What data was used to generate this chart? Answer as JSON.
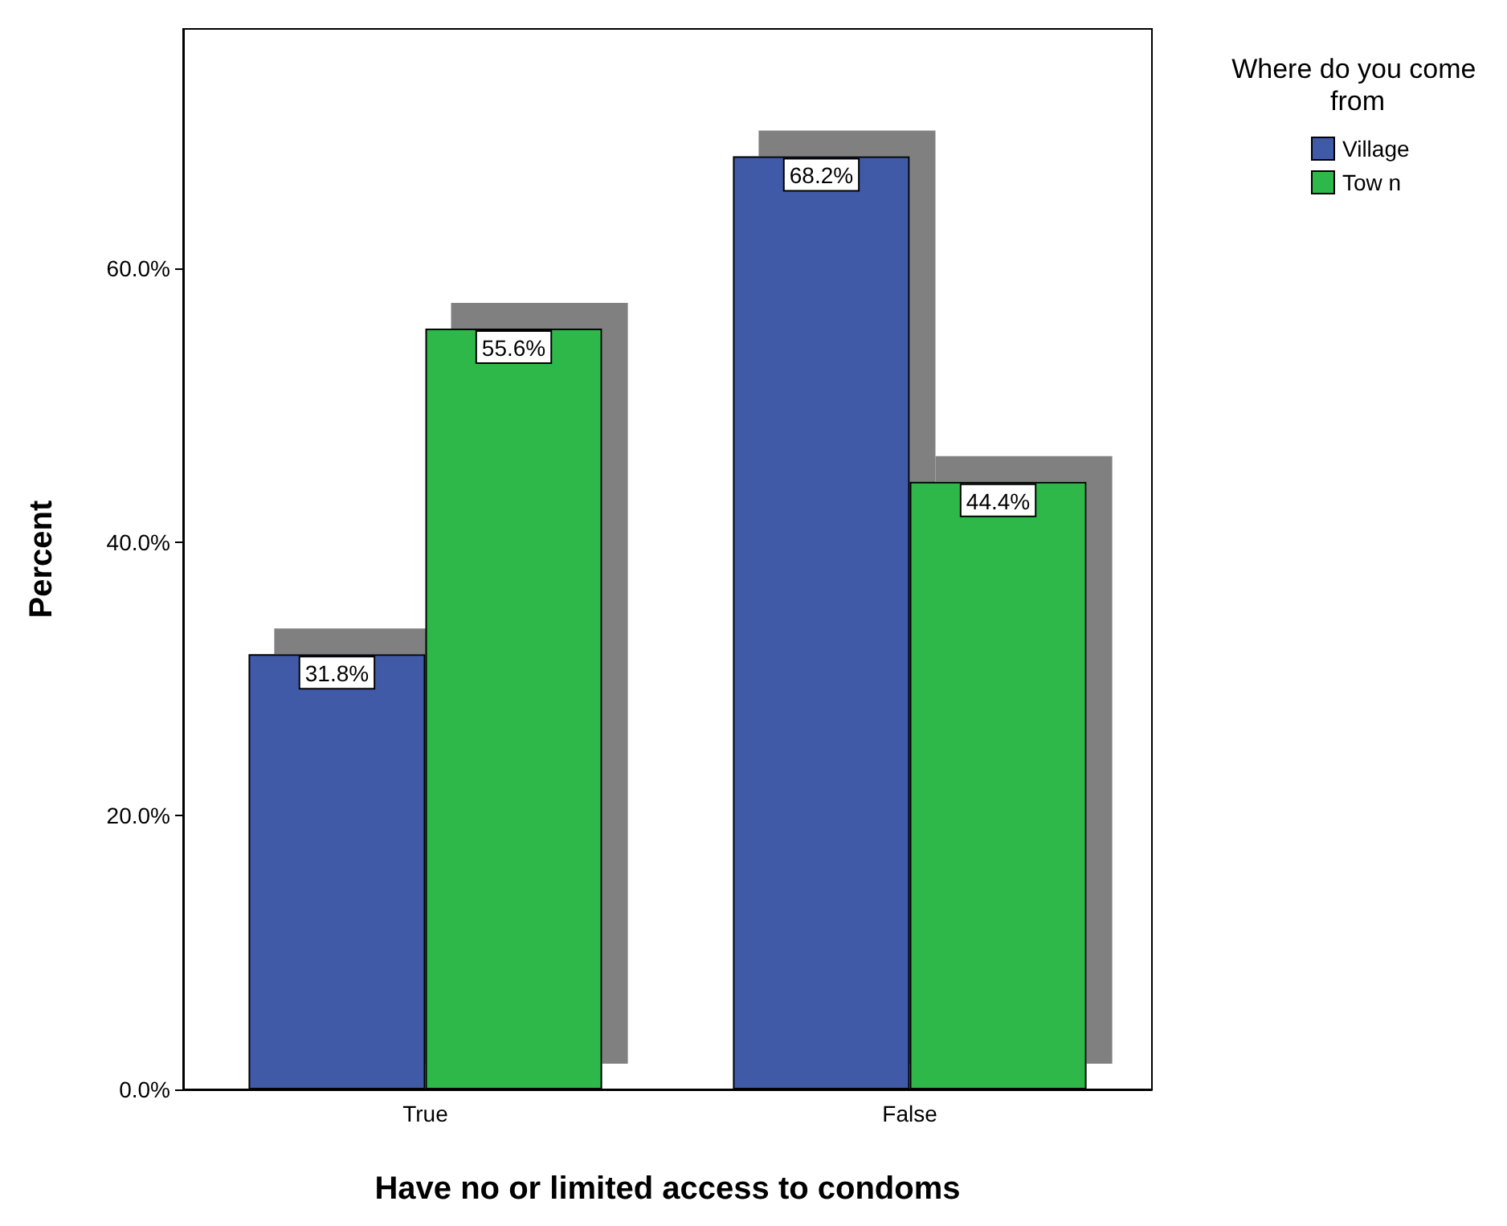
{
  "chart_data": {
    "type": "bar",
    "xlabel": "Have no or limited access to condoms",
    "ylabel": "Percent",
    "legend_title": "Where do you come from",
    "categories": [
      "True",
      "False"
    ],
    "series": [
      {
        "name": "Village",
        "color": "#3f5aa8",
        "values": [
          31.8,
          68.2
        ],
        "value_labels": [
          "31.8%",
          "68.2%"
        ]
      },
      {
        "name": "Tow n",
        "color": "#2fb84a",
        "values": [
          55.6,
          44.4
        ],
        "value_labels": [
          "55.6%",
          "44.4%"
        ]
      }
    ],
    "ylim": [
      0,
      77.5
    ],
    "yticks": [
      {
        "value": 0,
        "label": "0.0%"
      },
      {
        "value": 20,
        "label": "20.0%"
      },
      {
        "value": 40,
        "label": "40.0%"
      },
      {
        "value": 60,
        "label": "60.0%"
      }
    ],
    "grid": false,
    "legend": "top right"
  }
}
